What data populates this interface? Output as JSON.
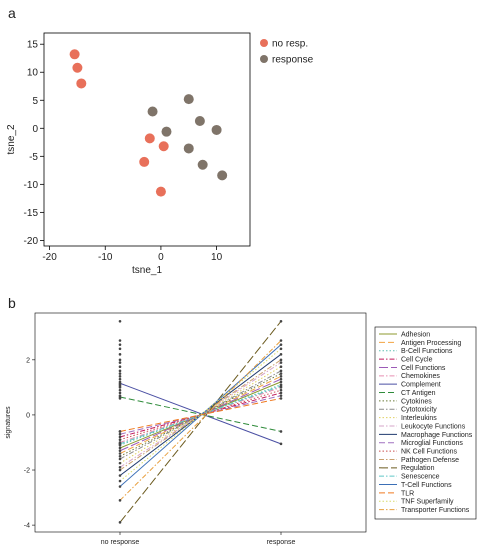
{
  "panels": {
    "a": "a",
    "b": "b"
  },
  "chart_data": [
    {
      "type": "scatter",
      "xlabel": "tsne_1",
      "ylabel": "tsne_2",
      "xlim": [
        -21,
        16
      ],
      "ylim": [
        -21,
        17
      ],
      "xticks": [
        -20,
        -10,
        0,
        10
      ],
      "yticks": [
        15,
        10,
        5,
        0,
        -5,
        -10,
        -15,
        -20
      ],
      "legend_position": "top-right",
      "series": [
        {
          "name": "no resp.",
          "color": "#e8705a",
          "x": [
            -15.5,
            -15.0,
            -14.3,
            -2.0,
            -3.0,
            0.5,
            0.0
          ],
          "y": [
            13.2,
            10.8,
            8.0,
            -1.8,
            -6.0,
            -3.2,
            -11.3
          ]
        },
        {
          "name": "response",
          "color": "#7f7469",
          "x": [
            -1.5,
            1.0,
            5.0,
            7.0,
            10.0,
            5.0,
            7.5,
            11.0
          ],
          "y": [
            3.0,
            -0.6,
            5.2,
            1.3,
            -0.3,
            -3.6,
            -6.5,
            -8.4
          ]
        }
      ]
    },
    {
      "type": "line",
      "categories": [
        "no response",
        "response"
      ],
      "ylabel": "signatures",
      "ylim": [
        -4.25,
        3.7
      ],
      "yticks": [
        2,
        0,
        -2,
        -4
      ],
      "legend_position": "right",
      "series": [
        {
          "name": "Adhesion",
          "color": "#8c9a2e",
          "dash": "solid",
          "values": [
            -1.2,
            1.2
          ]
        },
        {
          "name": "Antigen Processing",
          "color": "#f2a341",
          "dash": "6,3",
          "values": [
            -1.4,
            1.4
          ]
        },
        {
          "name": "B-Cell Functions",
          "color": "#5fbfb2",
          "dash": "1.5,2",
          "values": [
            -1.1,
            1.1
          ]
        },
        {
          "name": "Cell Cycle",
          "color": "#c2185b",
          "dash": "5,2,1.5,2",
          "values": [
            -0.8,
            0.8
          ]
        },
        {
          "name": "Cell Functions",
          "color": "#9b59b6",
          "dash": "9,3",
          "values": [
            -1.3,
            1.3
          ]
        },
        {
          "name": "Chemokines",
          "color": "#e88fb2",
          "dash": "5,2,1.5,2",
          "values": [
            -1.0,
            1.0
          ]
        },
        {
          "name": "Complement",
          "color": "#4a4fa3",
          "dash": "solid",
          "values": [
            1.15,
            -1.05
          ]
        },
        {
          "name": "CT Antigen",
          "color": "#2e8b3a",
          "dash": "6,3",
          "values": [
            0.65,
            -0.6
          ]
        },
        {
          "name": "Cytokines",
          "color": "#6b7b3a",
          "dash": "1.5,2",
          "values": [
            -1.5,
            1.5
          ]
        },
        {
          "name": "Cytotoxicity",
          "color": "#8a8a8a",
          "dash": "5,2,1.5,2",
          "values": [
            -1.6,
            1.6
          ]
        },
        {
          "name": "Interleukins",
          "color": "#e0d060",
          "dash": "1.5,2",
          "values": [
            -1.75,
            1.75
          ]
        },
        {
          "name": "Leukocyte Functions",
          "color": "#d6a4c8",
          "dash": "5,2,1.5,2",
          "values": [
            -1.9,
            1.9
          ]
        },
        {
          "name": "Macrophage Functions",
          "color": "#1f3a6e",
          "dash": "solid",
          "values": [
            -2.2,
            2.2
          ]
        },
        {
          "name": "Microglial Functions",
          "color": "#a070c0",
          "dash": "6,3",
          "values": [
            -0.7,
            0.7
          ]
        },
        {
          "name": "NK Cell Functions",
          "color": "#c94f4f",
          "dash": "1.5,2",
          "values": [
            -0.9,
            0.9
          ]
        },
        {
          "name": "Pathogen Defense",
          "color": "#c9a06e",
          "dash": "5,2,1.5,2",
          "values": [
            -2.0,
            2.0
          ]
        },
        {
          "name": "Regulation",
          "color": "#6b5a1e",
          "dash": "9,3",
          "values": [
            -3.9,
            3.4
          ]
        },
        {
          "name": "Senescence",
          "color": "#5fc7c7",
          "dash": "5,2,1.5,2",
          "values": [
            -1.05,
            1.05
          ]
        },
        {
          "name": "T-Cell Functions",
          "color": "#3b6fb6",
          "dash": "solid",
          "values": [
            -2.6,
            2.55
          ]
        },
        {
          "name": "TLR",
          "color": "#f07a20",
          "dash": "6,3",
          "values": [
            -0.6,
            0.6
          ]
        },
        {
          "name": "TNF Superfamily",
          "color": "#d8dc6a",
          "dash": "1.5,2",
          "values": [
            -2.4,
            2.4
          ]
        },
        {
          "name": "Transporter Functions",
          "color": "#e8a040",
          "dash": "5,2,1.5,2",
          "values": [
            -3.1,
            2.7
          ]
        }
      ]
    }
  ]
}
